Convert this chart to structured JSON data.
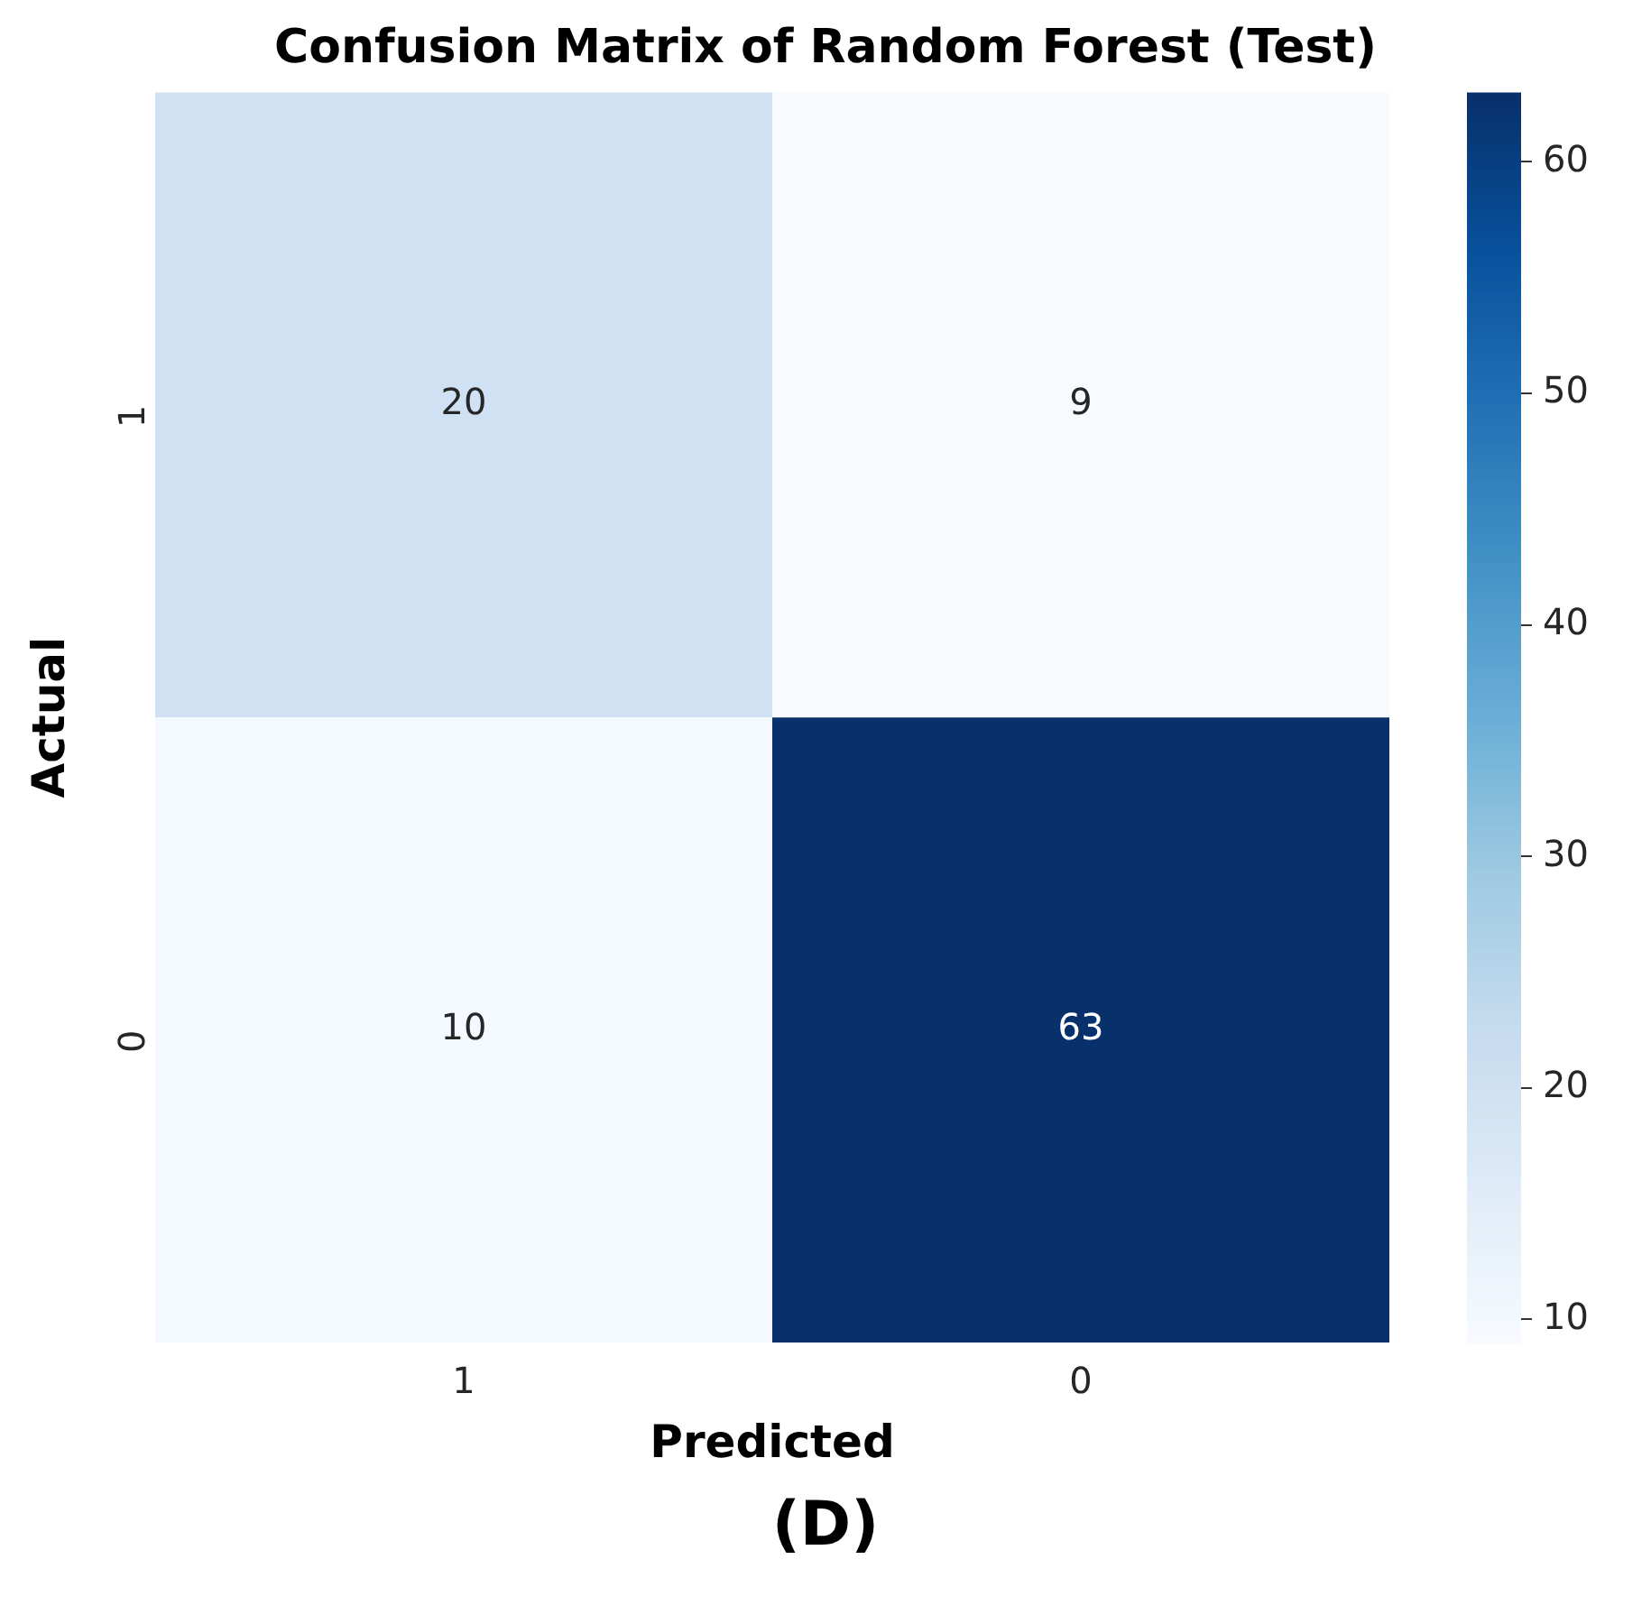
{
  "chart_data": {
    "type": "heatmap",
    "title": "Confusion Matrix of Random Forest (Test)",
    "xlabel": "Predicted",
    "ylabel": "Actual",
    "categories": [
      "1",
      "0"
    ],
    "y_categories": [
      "1",
      "0"
    ],
    "cells": [
      [
        20,
        9
      ],
      [
        10,
        63
      ]
    ],
    "data_labels": true,
    "clim": [
      9,
      63
    ],
    "cticks": [
      10,
      20,
      30,
      40,
      50,
      60
    ],
    "annotations": [
      "(D)"
    ]
  }
}
